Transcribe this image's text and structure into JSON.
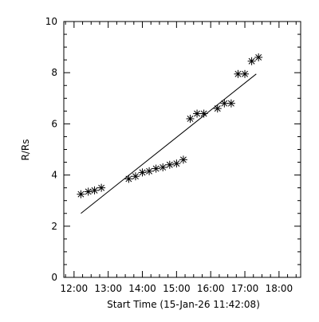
{
  "chart_data": {
    "type": "scatter",
    "title": "",
    "xlabel": "Start Time (15-Jan-26 11:42:08)",
    "ylabel": "R/Rs",
    "xlim": [
      "11:42",
      "18:38"
    ],
    "ylim": [
      0,
      10
    ],
    "x_ticks": [
      "12:00",
      "13:00",
      "14:00",
      "15:00",
      "16:00",
      "17:00",
      "18:00"
    ],
    "y_ticks": [
      "0",
      "2",
      "4",
      "6",
      "8",
      "10"
    ],
    "grid": false,
    "legend": "none",
    "marker": "asterisk",
    "series": [
      {
        "x": [
          "12:12",
          "12:25",
          "12:36",
          "12:48",
          "13:36",
          "13:48",
          "14:00",
          "14:12",
          "14:24",
          "14:36",
          "14:48",
          "15:00",
          "15:12",
          "15:24",
          "15:36",
          "15:48",
          "16:12",
          "16:24",
          "16:36",
          "16:48",
          "17:00",
          "17:12",
          "17:24"
        ],
        "y": [
          3.25,
          3.35,
          3.4,
          3.5,
          3.85,
          3.95,
          4.1,
          4.15,
          4.25,
          4.3,
          4.4,
          4.45,
          4.6,
          6.2,
          6.4,
          6.4,
          6.6,
          6.8,
          6.8,
          7.95,
          7.95,
          8.45,
          8.6
        ]
      }
    ],
    "fit_line": {
      "x": [
        "12:12",
        "17:20"
      ],
      "y": [
        2.5,
        7.95
      ]
    }
  }
}
